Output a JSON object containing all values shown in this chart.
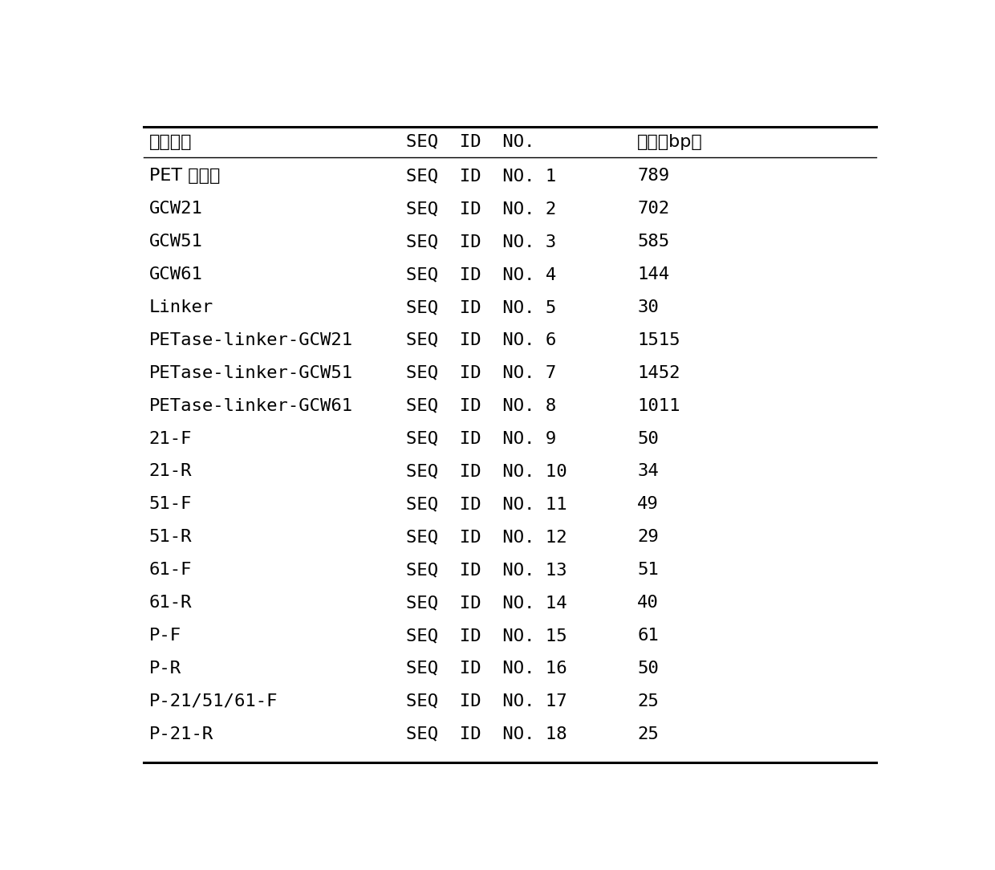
{
  "headers": [
    "基因名称",
    "SEQ  ID  NO.",
    "长度（bp）"
  ],
  "col0": [
    "PET 分解酶",
    "GCW21",
    "GCW51",
    "GCW61",
    "Linker",
    "PETase-linker-GCW21",
    "PETase-linker-GCW51",
    "PETase-linker-GCW61",
    "21-F",
    "21-R",
    "51-F",
    "51-R",
    "61-F",
    "61-R",
    "P-F",
    "P-R",
    "P-21/51/61-F",
    "P-21-R"
  ],
  "col1": [
    "SEQ  ID  NO. 1",
    "SEQ  ID  NO. 2",
    "SEQ  ID  NO. 3",
    "SEQ  ID  NO. 4",
    "SEQ  ID  NO. 5",
    "SEQ  ID  NO. 6",
    "SEQ  ID  NO. 7",
    "SEQ  ID  NO. 8",
    "SEQ  ID  NO. 9",
    "SEQ  ID  NO. 10",
    "SEQ  ID  NO. 11",
    "SEQ  ID  NO. 12",
    "SEQ  ID  NO. 13",
    "SEQ  ID  NO. 14",
    "SEQ  ID  NO. 15",
    "SEQ  ID  NO. 16",
    "SEQ  ID  NO. 17",
    "SEQ  ID  NO. 18"
  ],
  "col2": [
    "789",
    "702",
    "585",
    "144",
    "30",
    "1515",
    "1452",
    "1011",
    "50",
    "34",
    "49",
    "29",
    "51",
    "40",
    "61",
    "50",
    "25",
    "25"
  ],
  "background_color": "#ffffff",
  "text_color": "#000000",
  "font_size": 16,
  "header_font_size": 16
}
